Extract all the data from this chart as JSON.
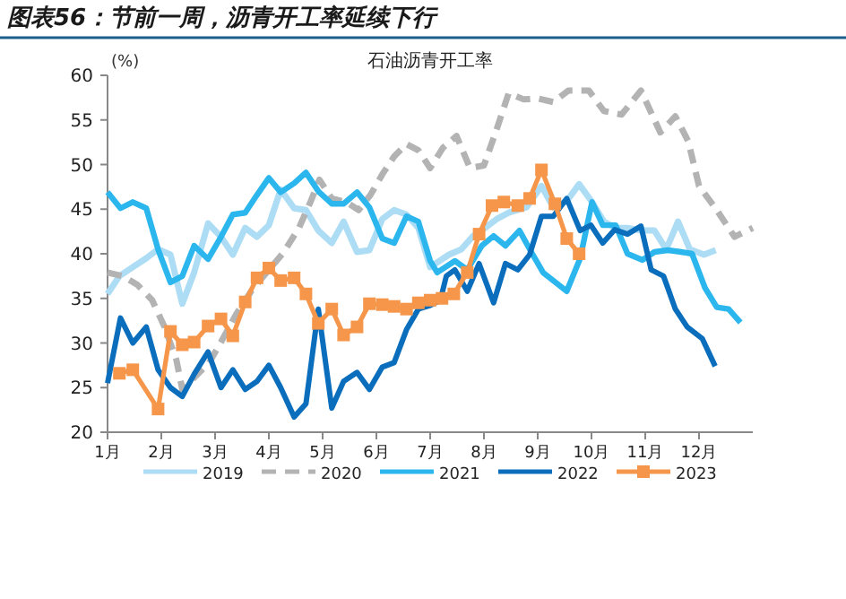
{
  "chart_data": {
    "type": "line",
    "title": "图表56：节前一周，沥青开工率延续下行",
    "subtitle": "石油沥青开工率",
    "ylabel": "(%)",
    "xlim": [
      1,
      13
    ],
    "xticks": [
      {
        "value": 1,
        "label": "1月"
      },
      {
        "value": 2,
        "label": "2月"
      },
      {
        "value": 3,
        "label": "3月"
      },
      {
        "value": 4,
        "label": "4月"
      },
      {
        "value": 5,
        "label": "5月"
      },
      {
        "value": 6,
        "label": "6月"
      },
      {
        "value": 7,
        "label": "7月"
      },
      {
        "value": 8,
        "label": "8月"
      },
      {
        "value": 9,
        "label": "9月"
      },
      {
        "value": 10,
        "label": "10月"
      },
      {
        "value": 11,
        "label": "11月"
      },
      {
        "value": 12,
        "label": "12月"
      }
    ],
    "ylim": [
      20,
      60
    ],
    "yticks": [
      20,
      25,
      30,
      35,
      40,
      45,
      50,
      55,
      60
    ],
    "legend": "bottom",
    "series": [
      {
        "name": "2019",
        "color": "#addcf5",
        "line_style": "solid",
        "marker": "none",
        "x": [
          1.0,
          1.22,
          1.47,
          1.72,
          1.94,
          2.17,
          2.39,
          2.61,
          2.87,
          3.11,
          3.33,
          3.56,
          3.78,
          4.0,
          4.22,
          4.47,
          4.69,
          4.92,
          5.17,
          5.39,
          5.64,
          5.87,
          6.11,
          6.33,
          6.56,
          6.78,
          7.0,
          7.35,
          7.58,
          7.8,
          8.02,
          8.24,
          8.46,
          8.79,
          9.07,
          9.29,
          9.54,
          9.77,
          10.01,
          10.23,
          10.45,
          10.67,
          10.92,
          11.17,
          11.39,
          11.61,
          11.83,
          12.09,
          12.31
        ],
        "values": [
          35.5,
          37.5,
          38.5,
          39.5,
          40.5,
          39.9,
          34.4,
          37.9,
          43.4,
          41.9,
          39.9,
          42.9,
          41.9,
          43.2,
          47.2,
          45.1,
          44.9,
          42.6,
          41.2,
          43.6,
          40.2,
          40.4,
          43.9,
          44.9,
          44.4,
          42.9,
          38.5,
          39.9,
          40.5,
          42.0,
          42.9,
          43.9,
          44.6,
          45.2,
          47.6,
          45.2,
          45.9,
          47.8,
          45.8,
          43.6,
          42.9,
          42.9,
          42.6,
          42.6,
          40.5,
          43.6,
          40.5,
          39.9,
          40.4
        ]
      },
      {
        "name": "2020",
        "color": "#b3b3b3",
        "line_style": "dashed",
        "marker": "none",
        "x": [
          1.0,
          1.28,
          1.56,
          1.83,
          2.06,
          2.28,
          2.39,
          2.61,
          2.89,
          3.11,
          3.39,
          3.67,
          4.0,
          4.28,
          4.56,
          4.78,
          4.94,
          5.17,
          5.44,
          5.67,
          5.89,
          6.11,
          6.33,
          6.56,
          6.78,
          7.0,
          7.24,
          7.49,
          7.74,
          8.0,
          8.24,
          8.46,
          8.74,
          9.01,
          9.29,
          9.57,
          9.95,
          10.23,
          10.56,
          10.92,
          11.28,
          11.56,
          11.8,
          12.0,
          12.33,
          12.66,
          13.0
        ],
        "values": [
          37.9,
          37.5,
          36.5,
          34.8,
          31.8,
          28.1,
          24.8,
          26.1,
          27.8,
          30.1,
          33.2,
          35.8,
          38.2,
          40.2,
          42.9,
          45.9,
          48.3,
          46.2,
          45.8,
          44.9,
          46.6,
          48.9,
          50.9,
          52.3,
          51.6,
          49.6,
          51.9,
          53.2,
          49.6,
          49.9,
          54.0,
          58.0,
          57.3,
          57.4,
          57.0,
          58.3,
          58.3,
          56.0,
          55.6,
          58.3,
          53.6,
          55.4,
          52.6,
          47.6,
          44.9,
          41.9,
          42.9
        ]
      },
      {
        "name": "2021",
        "color": "#2cb6ee",
        "line_style": "solid",
        "marker": "none",
        "x": [
          1.0,
          1.24,
          1.47,
          1.72,
          1.94,
          2.17,
          2.39,
          2.61,
          2.87,
          3.11,
          3.33,
          3.56,
          3.78,
          4.0,
          4.22,
          4.47,
          4.69,
          4.92,
          5.17,
          5.39,
          5.64,
          5.87,
          6.11,
          6.33,
          6.56,
          6.78,
          7.0,
          7.13,
          7.46,
          7.69,
          7.96,
          8.18,
          8.4,
          8.66,
          8.88,
          9.1,
          9.54,
          9.79,
          10.01,
          10.21,
          10.45,
          10.67,
          10.95,
          11.17,
          11.42,
          11.67,
          11.87,
          12.11,
          12.33,
          12.55,
          12.77
        ],
        "values": [
          46.9,
          45.1,
          45.8,
          45.1,
          40.5,
          36.8,
          37.5,
          40.9,
          39.4,
          41.9,
          44.4,
          44.6,
          46.6,
          48.5,
          46.9,
          47.9,
          49.1,
          47.0,
          45.6,
          45.6,
          46.9,
          45.2,
          41.7,
          41.2,
          44.2,
          43.6,
          39.2,
          37.9,
          39.2,
          38.2,
          40.9,
          42.0,
          40.9,
          42.6,
          40.2,
          37.9,
          35.8,
          39.5,
          45.8,
          43.2,
          43.2,
          40.0,
          39.3,
          40.2,
          40.4,
          40.2,
          40.0,
          36.2,
          34.0,
          33.8,
          32.3
        ]
      },
      {
        "name": "2022",
        "color": "#0a6ebd",
        "line_style": "solid",
        "marker": "none",
        "x": [
          1.0,
          1.24,
          1.47,
          1.72,
          1.94,
          2.17,
          2.39,
          2.61,
          2.87,
          3.11,
          3.33,
          3.56,
          3.78,
          4.0,
          4.22,
          4.47,
          4.69,
          4.92,
          5.17,
          5.39,
          5.64,
          5.87,
          6.11,
          6.33,
          6.56,
          6.78,
          7.0,
          7.19,
          7.3,
          7.46,
          7.69,
          7.91,
          8.18,
          8.4,
          8.63,
          8.85,
          9.07,
          9.29,
          9.54,
          9.79,
          9.99,
          10.21,
          10.43,
          10.67,
          10.92,
          11.11,
          11.34,
          11.56,
          11.78,
          12.06,
          12.3
        ],
        "values": [
          25.5,
          32.8,
          30.0,
          31.8,
          27.0,
          25.0,
          24.0,
          26.5,
          29.0,
          25.0,
          27.0,
          24.8,
          25.7,
          27.5,
          25.0,
          21.7,
          23.2,
          33.8,
          22.7,
          25.7,
          26.7,
          24.8,
          27.3,
          27.8,
          31.5,
          33.8,
          34.2,
          34.8,
          37.5,
          38.2,
          35.8,
          38.9,
          34.5,
          38.9,
          38.2,
          39.9,
          44.2,
          44.2,
          46.2,
          42.6,
          43.2,
          41.2,
          42.7,
          42.2,
          43.1,
          38.2,
          37.5,
          33.8,
          31.8,
          30.5,
          27.4
        ]
      },
      {
        "name": "2023",
        "color": "#f5964a",
        "line_style": "solid",
        "marker": "square",
        "x": [
          1.22,
          1.47,
          1.94,
          2.17,
          2.39,
          2.61,
          2.87,
          3.11,
          3.33,
          3.56,
          3.78,
          4.0,
          4.22,
          4.47,
          4.69,
          4.92,
          5.17,
          5.39,
          5.64,
          5.87,
          6.11,
          6.33,
          6.56,
          6.78,
          7.0,
          7.22,
          7.44,
          7.69,
          7.91,
          8.15,
          8.37,
          8.63,
          8.85,
          9.07,
          9.32,
          9.54,
          9.77
        ],
        "values": [
          26.6,
          27.0,
          22.6,
          31.3,
          29.8,
          30.1,
          31.9,
          32.7,
          30.8,
          34.6,
          37.3,
          38.4,
          37.0,
          37.3,
          35.5,
          32.2,
          33.8,
          30.9,
          31.8,
          34.4,
          34.3,
          34.1,
          33.8,
          34.5,
          34.8,
          35.0,
          35.5,
          37.9,
          42.2,
          45.4,
          45.8,
          45.4,
          46.2,
          49.4,
          45.6,
          41.7,
          40.0
        ]
      }
    ]
  }
}
